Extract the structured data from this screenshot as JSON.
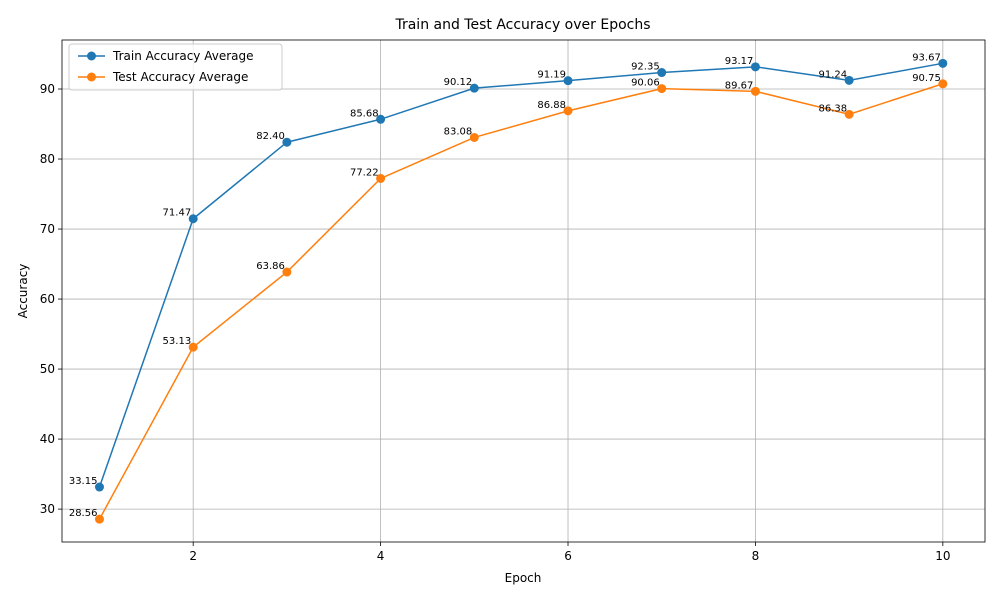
{
  "chart_data": {
    "type": "line",
    "title": "Train and Test Accuracy over Epochs",
    "xlabel": "Epoch",
    "ylabel": "Accuracy",
    "x": [
      1,
      2,
      3,
      4,
      5,
      6,
      7,
      8,
      9,
      10
    ],
    "xlim": [
      0.6,
      10.45
    ],
    "ylim": [
      25.3,
      97.0
    ],
    "xticks": [
      2,
      4,
      6,
      8,
      10
    ],
    "yticks": [
      30,
      40,
      50,
      60,
      70,
      80,
      90
    ],
    "grid": true,
    "legend_position": "top-left",
    "series": [
      {
        "name": "Train Accuracy Average",
        "color": "#1f77b4",
        "marker": "circle",
        "values": [
          33.15,
          71.47,
          82.4,
          85.68,
          90.12,
          91.19,
          92.35,
          93.17,
          91.24,
          93.67
        ],
        "labels": [
          "33.15",
          "71.47",
          "82.40",
          "85.68",
          "90.12",
          "91.19",
          "92.35",
          "93.17",
          "91.24",
          "93.67"
        ]
      },
      {
        "name": "Test Accuracy Average",
        "color": "#ff7f0e",
        "marker": "circle",
        "values": [
          28.56,
          53.13,
          63.86,
          77.22,
          83.08,
          86.88,
          90.06,
          89.67,
          86.38,
          90.75
        ],
        "labels": [
          "28.56",
          "53.13",
          "63.86",
          "77.22",
          "83.08",
          "86.88",
          "90.06",
          "89.67",
          "86.38",
          "90.75"
        ]
      }
    ]
  }
}
